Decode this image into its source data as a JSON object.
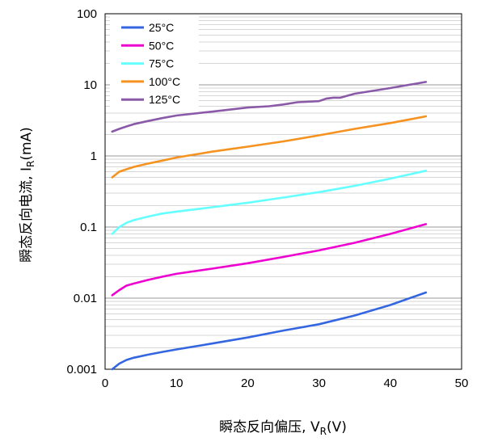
{
  "chart_data": {
    "type": "line",
    "xlabel_prefix": "瞬态反向偏压, V",
    "xlabel_sub": "R",
    "xlabel_suffix": "(V)",
    "ylabel_prefix": "瞬态反向电流, I",
    "ylabel_sub": "R",
    "ylabel_suffix": "(mA)",
    "xlim": [
      0,
      50
    ],
    "ylim": [
      0.001,
      100
    ],
    "y_scale": "log",
    "grid": true,
    "legend_position": "top-left",
    "x_ticks": [
      "0",
      "10",
      "20",
      "30",
      "40",
      "50"
    ],
    "y_ticks": [
      "0.001",
      "0.01",
      "0.1",
      "1",
      "10",
      "100"
    ],
    "series": [
      {
        "name": "25°C",
        "color": "#3366e0",
        "x": [
          1,
          2,
          3,
          4,
          6,
          8,
          10,
          15,
          20,
          25,
          30,
          35,
          40,
          45
        ],
        "y": [
          0.001,
          0.0012,
          0.00135,
          0.00145,
          0.0016,
          0.00175,
          0.0019,
          0.0023,
          0.0028,
          0.0035,
          0.0043,
          0.0057,
          0.008,
          0.012
        ]
      },
      {
        "name": "50°C",
        "color": "#ee00d0",
        "x": [
          1,
          2,
          3,
          4,
          6,
          8,
          10,
          15,
          20,
          25,
          30,
          35,
          40,
          45
        ],
        "y": [
          0.011,
          0.013,
          0.015,
          0.016,
          0.018,
          0.02,
          0.022,
          0.026,
          0.031,
          0.038,
          0.047,
          0.06,
          0.08,
          0.11
        ]
      },
      {
        "name": "75°C",
        "color": "#66ffff",
        "x": [
          1,
          2,
          3,
          4,
          6,
          8,
          10,
          15,
          20,
          25,
          30,
          35,
          40,
          45
        ],
        "y": [
          0.08,
          0.1,
          0.115,
          0.125,
          0.14,
          0.155,
          0.165,
          0.19,
          0.22,
          0.26,
          0.31,
          0.38,
          0.48,
          0.62
        ]
      },
      {
        "name": "100°C",
        "color": "#f59220",
        "x": [
          1,
          2,
          3,
          4,
          6,
          8,
          10,
          15,
          20,
          25,
          30,
          35,
          40,
          45
        ],
        "y": [
          0.5,
          0.6,
          0.65,
          0.7,
          0.78,
          0.86,
          0.95,
          1.15,
          1.35,
          1.6,
          1.95,
          2.4,
          2.9,
          3.6
        ]
      },
      {
        "name": "125°C",
        "color": "#8a5aa8",
        "x": [
          1,
          2,
          3,
          4,
          6,
          8,
          10,
          15,
          20,
          23,
          25,
          27,
          30,
          31,
          32,
          33,
          35,
          40,
          45
        ],
        "y": [
          2.2,
          2.4,
          2.6,
          2.8,
          3.1,
          3.4,
          3.7,
          4.2,
          4.8,
          5.0,
          5.3,
          5.7,
          5.9,
          6.4,
          6.6,
          6.6,
          7.5,
          9.0,
          11.0
        ]
      }
    ]
  }
}
